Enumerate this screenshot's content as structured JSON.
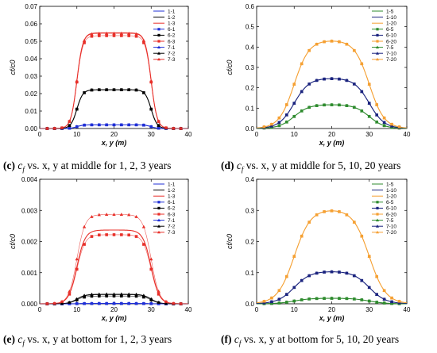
{
  "colors": {
    "blue": "#1f2fd6",
    "black": "#000000",
    "red": "#e8302a",
    "green": "#2e8b2e",
    "navy": "#1a237e",
    "orange": "#f5a033"
  },
  "captions": [
    {
      "letter": "(c)",
      "text": "vs. x, y at middle for 1, 2, 3 years"
    },
    {
      "letter": "(d)",
      "text": "vs. x, y at middle for 5, 10, 20 years"
    },
    {
      "letter": "(e)",
      "text": "vs. x, y at bottom for 1, 2, 3 years"
    },
    {
      "letter": "(f)",
      "text": "vs. x, y at bottom for 5, 10, 20 years"
    }
  ],
  "chart_data": [
    {
      "type": "line",
      "xlabel": "x, y (m)",
      "ylabel": "cf/c0",
      "xlim": [
        0,
        40
      ],
      "ylim": [
        0,
        0.07
      ],
      "xticks": [
        "0",
        "10",
        "20",
        "30",
        "40"
      ],
      "yticks": [
        "0.00",
        "0.01",
        "0.02",
        "0.03",
        "0.04",
        "0.05",
        "0.06",
        "0.07"
      ],
      "legend_placement": "top-right",
      "series": [
        {
          "name": "1-1",
          "color": "blue",
          "marker": "none",
          "plateau": 0.0021
        },
        {
          "name": "1-2",
          "color": "black",
          "marker": "none",
          "plateau": 0.0222
        },
        {
          "name": "1-3",
          "color": "red",
          "marker": "none",
          "plateau": 0.0548
        },
        {
          "name": "6-1",
          "color": "blue",
          "marker": "square",
          "plateau": 0.0021
        },
        {
          "name": "6-2",
          "color": "black",
          "marker": "square",
          "plateau": 0.0222
        },
        {
          "name": "6-3",
          "color": "red",
          "marker": "square",
          "plateau": 0.0532
        },
        {
          "name": "7-1",
          "color": "blue",
          "marker": "triangle",
          "plateau": 0.0021
        },
        {
          "name": "7-2",
          "color": "black",
          "marker": "triangle",
          "plateau": 0.0222
        },
        {
          "name": "7-3",
          "color": "red",
          "marker": "triangle",
          "plateau": 0.0545
        }
      ],
      "profile": {
        "x_left": 10,
        "x_right": 30,
        "width": 0.8
      }
    },
    {
      "type": "line",
      "xlabel": "x, y (m)",
      "ylabel": "cf/c0",
      "xlim": [
        0,
        40
      ],
      "ylim": [
        0,
        0.6
      ],
      "xticks": [
        "0",
        "10",
        "20",
        "30",
        "40"
      ],
      "yticks": [
        "0.0",
        "0.1",
        "0.2",
        "0.3",
        "0.4",
        "0.5",
        "0.6"
      ],
      "legend_placement": "top-right",
      "series": [
        {
          "name": "1-5",
          "color": "green",
          "marker": "none",
          "plateau": 0.118
        },
        {
          "name": "1-10",
          "color": "navy",
          "marker": "none",
          "plateau": 0.248
        },
        {
          "name": "1-20",
          "color": "orange",
          "marker": "none",
          "plateau": 0.435
        },
        {
          "name": "6-5",
          "color": "green",
          "marker": "square",
          "plateau": 0.118
        },
        {
          "name": "6-10",
          "color": "navy",
          "marker": "square",
          "plateau": 0.248
        },
        {
          "name": "6-20",
          "color": "orange",
          "marker": "square",
          "plateau": 0.435
        },
        {
          "name": "7-5",
          "color": "green",
          "marker": "triangle",
          "plateau": 0.118
        },
        {
          "name": "7-10",
          "color": "navy",
          "marker": "triangle",
          "plateau": 0.248
        },
        {
          "name": "7-20",
          "color": "orange",
          "marker": "triangle",
          "plateau": 0.435
        }
      ],
      "profile": {
        "x_left": 10,
        "x_right": 30,
        "width": 2.0
      }
    },
    {
      "type": "line",
      "xlabel": "x, y (m)",
      "ylabel": "cf/c0",
      "xlim": [
        0,
        40
      ],
      "ylim": [
        0,
        0.004
      ],
      "xticks": [
        "0",
        "10",
        "20",
        "30",
        "40"
      ],
      "yticks": [
        "0.000",
        "0.001",
        "0.002",
        "0.003",
        "0.004"
      ],
      "legend_placement": "top-right",
      "series": [
        {
          "name": "1-1",
          "color": "blue",
          "marker": "none",
          "plateau": 1e-05
        },
        {
          "name": "1-2",
          "color": "black",
          "marker": "none",
          "plateau": 0.0003
        },
        {
          "name": "1-3",
          "color": "red",
          "marker": "none",
          "plateau": 0.00237
        },
        {
          "name": "6-1",
          "color": "blue",
          "marker": "square",
          "plateau": 1e-05
        },
        {
          "name": "6-2",
          "color": "black",
          "marker": "square",
          "plateau": 0.00025
        },
        {
          "name": "6-3",
          "color": "red",
          "marker": "square",
          "plateau": 0.00222
        },
        {
          "name": "7-1",
          "color": "blue",
          "marker": "triangle",
          "plateau": 1e-05
        },
        {
          "name": "7-2",
          "color": "black",
          "marker": "triangle",
          "plateau": 0.00031
        },
        {
          "name": "7-3",
          "color": "red",
          "marker": "triangle",
          "plateau": 0.00287
        }
      ],
      "profile": {
        "x_left": 10,
        "x_right": 30,
        "width": 1.1
      }
    },
    {
      "type": "line",
      "xlabel": "x, y (m)",
      "ylabel": "cf/c0",
      "xlim": [
        0,
        40
      ],
      "ylim": [
        0,
        0.4
      ],
      "xticks": [
        "0",
        "10",
        "20",
        "30",
        "40"
      ],
      "yticks": [
        "0.0",
        "0.1",
        "0.2",
        "0.3",
        "0.4"
      ],
      "legend_placement": "top-right",
      "series": [
        {
          "name": "1-5",
          "color": "green",
          "marker": "none",
          "plateau": 0.018
        },
        {
          "name": "1-10",
          "color": "navy",
          "marker": "none",
          "plateau": 0.105
        },
        {
          "name": "1-20",
          "color": "orange",
          "marker": "none",
          "plateau": 0.305
        },
        {
          "name": "6-5",
          "color": "green",
          "marker": "square",
          "plateau": 0.018
        },
        {
          "name": "6-10",
          "color": "navy",
          "marker": "square",
          "plateau": 0.105
        },
        {
          "name": "6-20",
          "color": "orange",
          "marker": "square",
          "plateau": 0.305
        },
        {
          "name": "7-5",
          "color": "green",
          "marker": "triangle",
          "plateau": 0.018
        },
        {
          "name": "7-10",
          "color": "navy",
          "marker": "triangle",
          "plateau": 0.105
        },
        {
          "name": "7-20",
          "color": "orange",
          "marker": "triangle",
          "plateau": 0.305
        }
      ],
      "profile": {
        "x_left": 10,
        "x_right": 30,
        "width": 2.2
      }
    }
  ]
}
